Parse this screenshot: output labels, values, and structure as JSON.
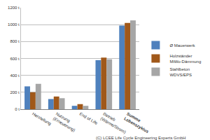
{
  "chart_data": {
    "type": "bar",
    "categories": [
      "Herstellung",
      "Nutzung (Erneuerung)",
      "End of Life",
      "Betrieb (Wärme/Strom)",
      "Summe Lebenszyklus"
    ],
    "series": [
      {
        "name": "Ø Mauerwerk",
        "color": "#4f81bd",
        "values": [
          270,
          120,
          40,
          580,
          990
        ]
      },
      {
        "name": "Holzständer MiWo-Dämmung",
        "color": "#a0581a",
        "values": [
          200,
          150,
          60,
          610,
          1020
        ]
      },
      {
        "name": "Stahlbeton WDVS/EPS",
        "color": "#a6a6a6",
        "values": [
          300,
          130,
          40,
          590,
          1050
        ]
      }
    ],
    "ylim": [
      0,
      1200
    ],
    "yticks": [
      {
        "value": 0,
        "label": "0 t"
      },
      {
        "value": 200,
        "label": "200 t"
      },
      {
        "value": 400,
        "label": "400 t"
      },
      {
        "value": 600,
        "label": "600 t"
      },
      {
        "value": 800,
        "label": "800 t"
      },
      {
        "value": 1000,
        "label": "1000 t"
      },
      {
        "value": 1200,
        "label": "1200 t"
      }
    ],
    "grid": true,
    "legend": "right",
    "annotations": [
      "(C) LCEE Life Cycle Engineering Experts GmbH"
    ]
  }
}
